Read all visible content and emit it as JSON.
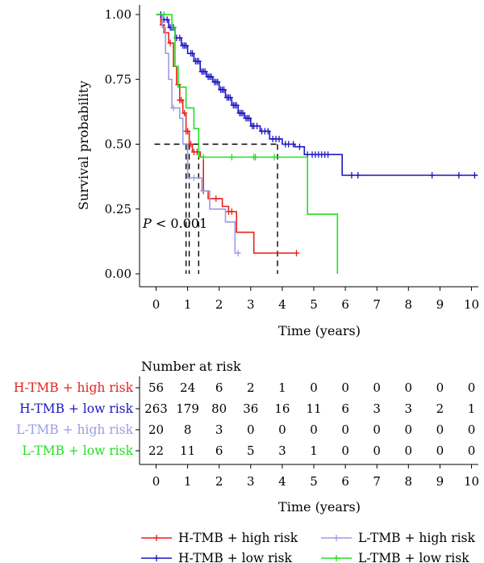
{
  "chart_data": [
    {
      "type": "line",
      "subtype": "kaplan-meier",
      "title": "",
      "xlabel": "Time (years)",
      "ylabel": "Survival probability",
      "xlim": [
        -0.5,
        10.3
      ],
      "ylim": [
        0,
        1
      ],
      "x_ticks": [
        0,
        1,
        2,
        3,
        4,
        5,
        6,
        7,
        8,
        9,
        10
      ],
      "y_ticks": [
        "0.00",
        "0.25",
        "0.50",
        "0.75",
        "1.00"
      ],
      "annotation_p": "P",
      "annotation_rest": " < 0.001",
      "median_survival": {
        "y": 0.5,
        "x_values": [
          0.95,
          1.05,
          1.35,
          3.85
        ]
      },
      "series": [
        {
          "name": "H-TMB + high risk",
          "color": "#e8211c",
          "steps": [
            [
              0,
              1.0
            ],
            [
              0.15,
              0.96
            ],
            [
              0.25,
              0.93
            ],
            [
              0.4,
              0.89
            ],
            [
              0.55,
              0.8
            ],
            [
              0.65,
              0.73
            ],
            [
              0.75,
              0.67
            ],
            [
              0.85,
              0.62
            ],
            [
              0.95,
              0.55
            ],
            [
              1.05,
              0.5
            ],
            [
              1.15,
              0.47
            ],
            [
              1.4,
              0.45
            ],
            [
              1.5,
              0.32
            ],
            [
              1.65,
              0.29
            ],
            [
              2.1,
              0.26
            ],
            [
              2.3,
              0.24
            ],
            [
              2.55,
              0.16
            ],
            [
              3.1,
              0.08
            ],
            [
              4.5,
              0.08
            ]
          ],
          "censor_x": [
            0.2,
            0.45,
            0.7,
            0.75,
            0.8,
            0.9,
            0.95,
            1.0,
            1.1,
            1.2,
            1.3,
            1.5,
            1.9,
            2.3,
            2.4,
            4.45
          ]
        },
        {
          "name": "H-TMB + low risk",
          "color": "#1c16c2",
          "steps": [
            [
              0,
              1.0
            ],
            [
              0.2,
              0.98
            ],
            [
              0.4,
              0.95
            ],
            [
              0.6,
              0.91
            ],
            [
              0.8,
              0.88
            ],
            [
              1.0,
              0.85
            ],
            [
              1.2,
              0.82
            ],
            [
              1.4,
              0.78
            ],
            [
              1.6,
              0.76
            ],
            [
              1.8,
              0.74
            ],
            [
              2.0,
              0.71
            ],
            [
              2.2,
              0.68
            ],
            [
              2.4,
              0.65
            ],
            [
              2.6,
              0.62
            ],
            [
              2.8,
              0.6
            ],
            [
              3.0,
              0.57
            ],
            [
              3.3,
              0.55
            ],
            [
              3.6,
              0.52
            ],
            [
              4.0,
              0.5
            ],
            [
              4.4,
              0.49
            ],
            [
              4.7,
              0.46
            ],
            [
              5.9,
              0.38
            ],
            [
              10.2,
              0.38
            ]
          ],
          "censor_x": [
            0.15,
            0.25,
            0.35,
            0.45,
            0.5,
            0.55,
            0.65,
            0.75,
            0.85,
            0.9,
            0.95,
            1.1,
            1.15,
            1.25,
            1.3,
            1.35,
            1.45,
            1.5,
            1.55,
            1.65,
            1.7,
            1.75,
            1.85,
            1.9,
            1.95,
            2.05,
            2.1,
            2.15,
            2.25,
            2.3,
            2.35,
            2.45,
            2.5,
            2.55,
            2.65,
            2.7,
            2.75,
            2.85,
            2.9,
            2.95,
            3.05,
            3.1,
            3.2,
            3.35,
            3.45,
            3.55,
            3.7,
            3.8,
            3.9,
            4.1,
            4.2,
            4.35,
            4.55,
            4.8,
            4.95,
            5.05,
            5.15,
            5.25,
            5.35,
            5.45,
            6.2,
            6.4,
            8.75,
            9.6,
            10.1
          ]
        },
        {
          "name": "L-TMB + high risk",
          "color": "#9b9be6",
          "steps": [
            [
              0,
              1.0
            ],
            [
              0.2,
              0.95
            ],
            [
              0.3,
              0.85
            ],
            [
              0.4,
              0.75
            ],
            [
              0.5,
              0.64
            ],
            [
              0.75,
              0.6
            ],
            [
              0.85,
              0.5
            ],
            [
              1.0,
              0.37
            ],
            [
              1.45,
              0.32
            ],
            [
              1.7,
              0.25
            ],
            [
              2.2,
              0.2
            ],
            [
              2.5,
              0.08
            ],
            [
              2.65,
              0.08
            ]
          ],
          "censor_x": [
            0.55,
            1.2,
            2.6
          ]
        },
        {
          "name": "L-TMB + low risk",
          "color": "#22e022",
          "steps": [
            [
              0,
              1.0
            ],
            [
              0.5,
              0.95
            ],
            [
              0.6,
              0.8
            ],
            [
              0.7,
              0.72
            ],
            [
              0.95,
              0.64
            ],
            [
              1.2,
              0.56
            ],
            [
              1.35,
              0.45
            ],
            [
              4.75,
              0.45
            ],
            [
              4.8,
              0.23
            ],
            [
              5.75,
              0.0
            ]
          ],
          "censor_x": [
            0.25,
            1.5,
            2.4,
            3.1,
            3.15,
            3.75
          ]
        }
      ]
    },
    {
      "type": "table",
      "title": "Number at risk",
      "xlabel": "Time (years)",
      "columns": [
        0,
        1,
        2,
        3,
        4,
        5,
        6,
        7,
        8,
        9,
        10
      ],
      "rows": [
        {
          "label": "H-TMB + high risk",
          "color": "#e8211c",
          "values": [
            56,
            24,
            6,
            2,
            1,
            0,
            0,
            0,
            0,
            0,
            0
          ]
        },
        {
          "label": "H-TMB + low risk",
          "color": "#1c16c2",
          "values": [
            263,
            179,
            80,
            36,
            16,
            11,
            6,
            3,
            3,
            2,
            1
          ]
        },
        {
          "label": "L-TMB + high risk",
          "color": "#9b9be6",
          "values": [
            20,
            8,
            3,
            0,
            0,
            0,
            0,
            0,
            0,
            0,
            0
          ]
        },
        {
          "label": "L-TMB + low risk",
          "color": "#22e022",
          "values": [
            22,
            11,
            6,
            5,
            3,
            1,
            0,
            0,
            0,
            0,
            0
          ]
        }
      ]
    }
  ],
  "legend": {
    "placement": "bottom",
    "entries": [
      {
        "label": "H-TMB + high risk",
        "color": "#e8211c"
      },
      {
        "label": "L-TMB + high risk",
        "color": "#9b9be6"
      },
      {
        "label": "H-TMB + low risk",
        "color": "#1c16c2"
      },
      {
        "label": "L-TMB + low risk",
        "color": "#22e022"
      }
    ]
  }
}
